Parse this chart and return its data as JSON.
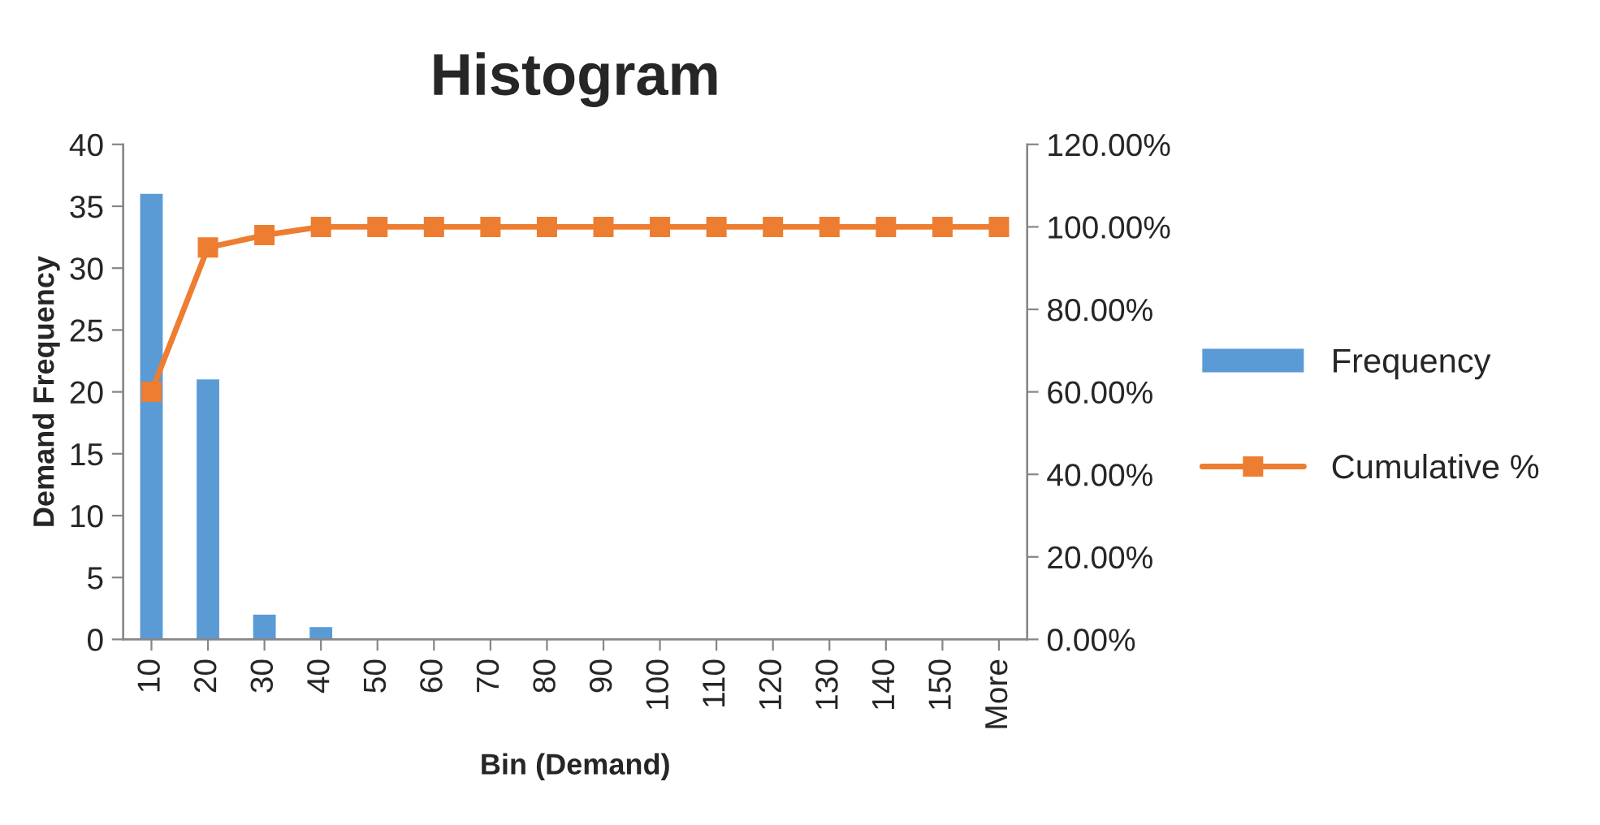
{
  "chart_data": {
    "type": "bar",
    "title": "Histogram",
    "xlabel": "Bin (Demand)",
    "ylabel": "Demand Frequency",
    "categories": [
      "10",
      "20",
      "30",
      "40",
      "50",
      "60",
      "70",
      "80",
      "90",
      "100",
      "110",
      "120",
      "130",
      "140",
      "150",
      "More"
    ],
    "series": [
      {
        "name": "Frequency",
        "color": "#5b9bd5",
        "values": [
          36,
          21,
          2,
          1,
          0,
          0,
          0,
          0,
          0,
          0,
          0,
          0,
          0,
          0,
          0,
          0
        ]
      },
      {
        "name": "Cumulative %",
        "type": "line",
        "axis": "y2",
        "color": "#ed7d31",
        "marker": "square",
        "values": [
          0.6,
          0.95,
          0.98,
          1.0,
          1.0,
          1.0,
          1.0,
          1.0,
          1.0,
          1.0,
          1.0,
          1.0,
          1.0,
          1.0,
          1.0,
          1.0
        ]
      }
    ],
    "ylim": [
      0,
      40
    ],
    "yticks": [
      0,
      5,
      10,
      15,
      20,
      25,
      30,
      35,
      40
    ],
    "y2lim": [
      0,
      1.2
    ],
    "y2ticks": [
      {
        "value": 0,
        "label": "0.00%"
      },
      {
        "value": 0.2,
        "label": "20.00%"
      },
      {
        "value": 0.4,
        "label": "40.00%"
      },
      {
        "value": 0.6,
        "label": "60.00%"
      },
      {
        "value": 0.8,
        "label": "80.00%"
      },
      {
        "value": 1.0,
        "label": "100.00%"
      },
      {
        "value": 1.2,
        "label": "120.00%"
      }
    ],
    "grid": false,
    "legend": "right"
  }
}
